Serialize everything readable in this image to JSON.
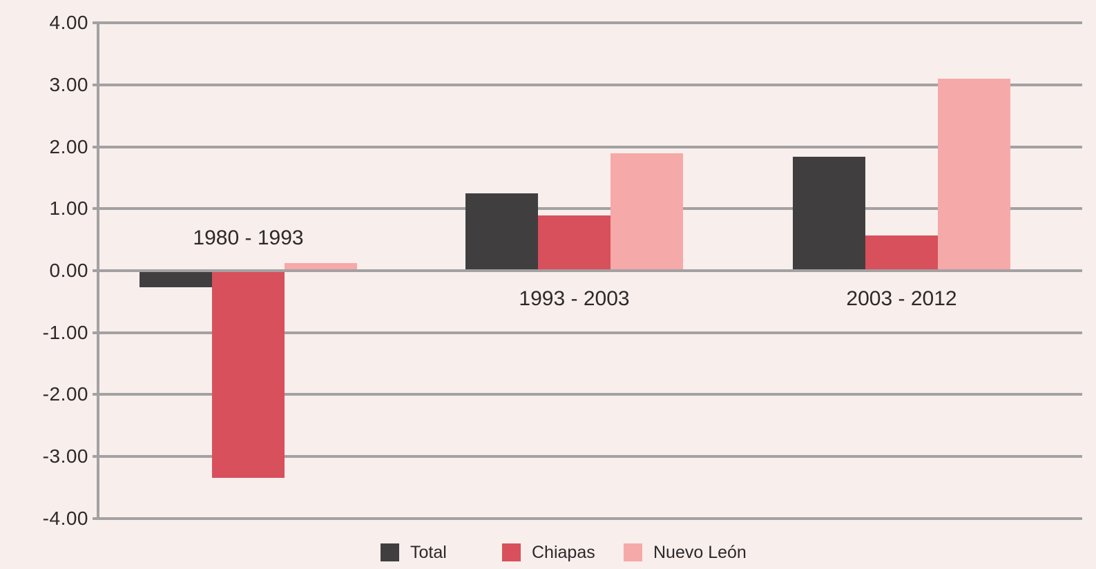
{
  "chart_data": {
    "type": "bar",
    "title": "",
    "categories": [
      "1980 - 1993",
      "1993 - 2003",
      "2003 - 2012"
    ],
    "series": [
      {
        "name": "Total",
        "color": "#413e40",
        "values": [
          -0.27,
          1.25,
          1.84
        ]
      },
      {
        "name": "Chiapas",
        "color": "#d8505b",
        "values": [
          -3.35,
          0.89,
          0.57
        ]
      },
      {
        "name": "Nuevo León",
        "color": "#f5a9a8",
        "values": [
          0.12,
          1.9,
          3.1
        ]
      }
    ],
    "ylim": [
      -4,
      4
    ],
    "ytick_step": 1,
    "ytick_labels": [
      "4.00",
      "3.00",
      "2.00",
      "1.00",
      "0.00",
      "-1.00",
      "-2.00",
      "-3.00",
      "-4.00"
    ],
    "grid": true,
    "legend_position": "bottom",
    "colors": {
      "background": "#f8eeec",
      "gridline": "#a3a1a2",
      "axis": "#a3a1a2",
      "text": "#2d2829"
    }
  }
}
